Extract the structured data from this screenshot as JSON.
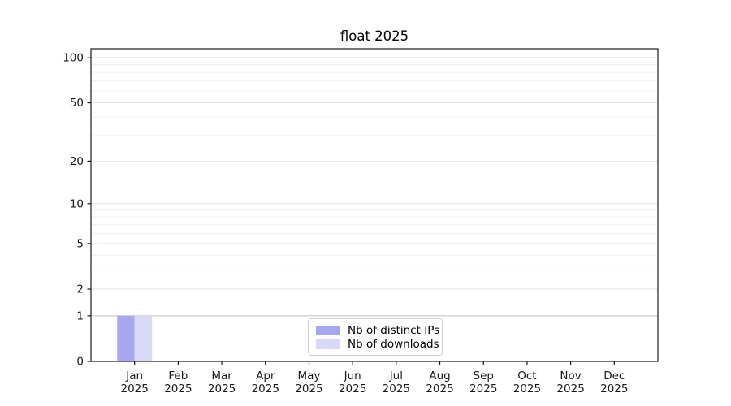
{
  "chart_data": {
    "type": "bar",
    "title": "float 2025",
    "categories": [
      "Jan",
      "Feb",
      "Mar",
      "Apr",
      "May",
      "Jun",
      "Jul",
      "Aug",
      "Sep",
      "Oct",
      "Nov",
      "Dec"
    ],
    "category_sublabel": "2025",
    "series": [
      {
        "name": "Nb of distinct IPs",
        "color": "#a8a8f0",
        "values": [
          1,
          0,
          0,
          0,
          0,
          0,
          0,
          0,
          0,
          0,
          0,
          0
        ]
      },
      {
        "name": "Nb of downloads",
        "color": "#d9d9f8",
        "values": [
          1,
          0,
          0,
          0,
          0,
          0,
          0,
          0,
          0,
          0,
          0,
          0
        ]
      }
    ],
    "yscale": "log1p",
    "ylim": [
      0,
      115
    ],
    "yticks": [
      0,
      1,
      2,
      5,
      10,
      20,
      50,
      100
    ],
    "minor_yticks": [
      3,
      4,
      6,
      7,
      8,
      9,
      30,
      40,
      60,
      70,
      80,
      90
    ],
    "emphasized_gridlines": [
      1,
      100
    ],
    "grid": true,
    "legend_position": "lower center",
    "colors": {
      "spine": "#1a1a1a",
      "tick_label": "#1a1a1a",
      "grid_major": "#e6e6e6",
      "grid_minor": "#f0f0f0",
      "grid_emphasized": "#bdbdbd"
    }
  }
}
